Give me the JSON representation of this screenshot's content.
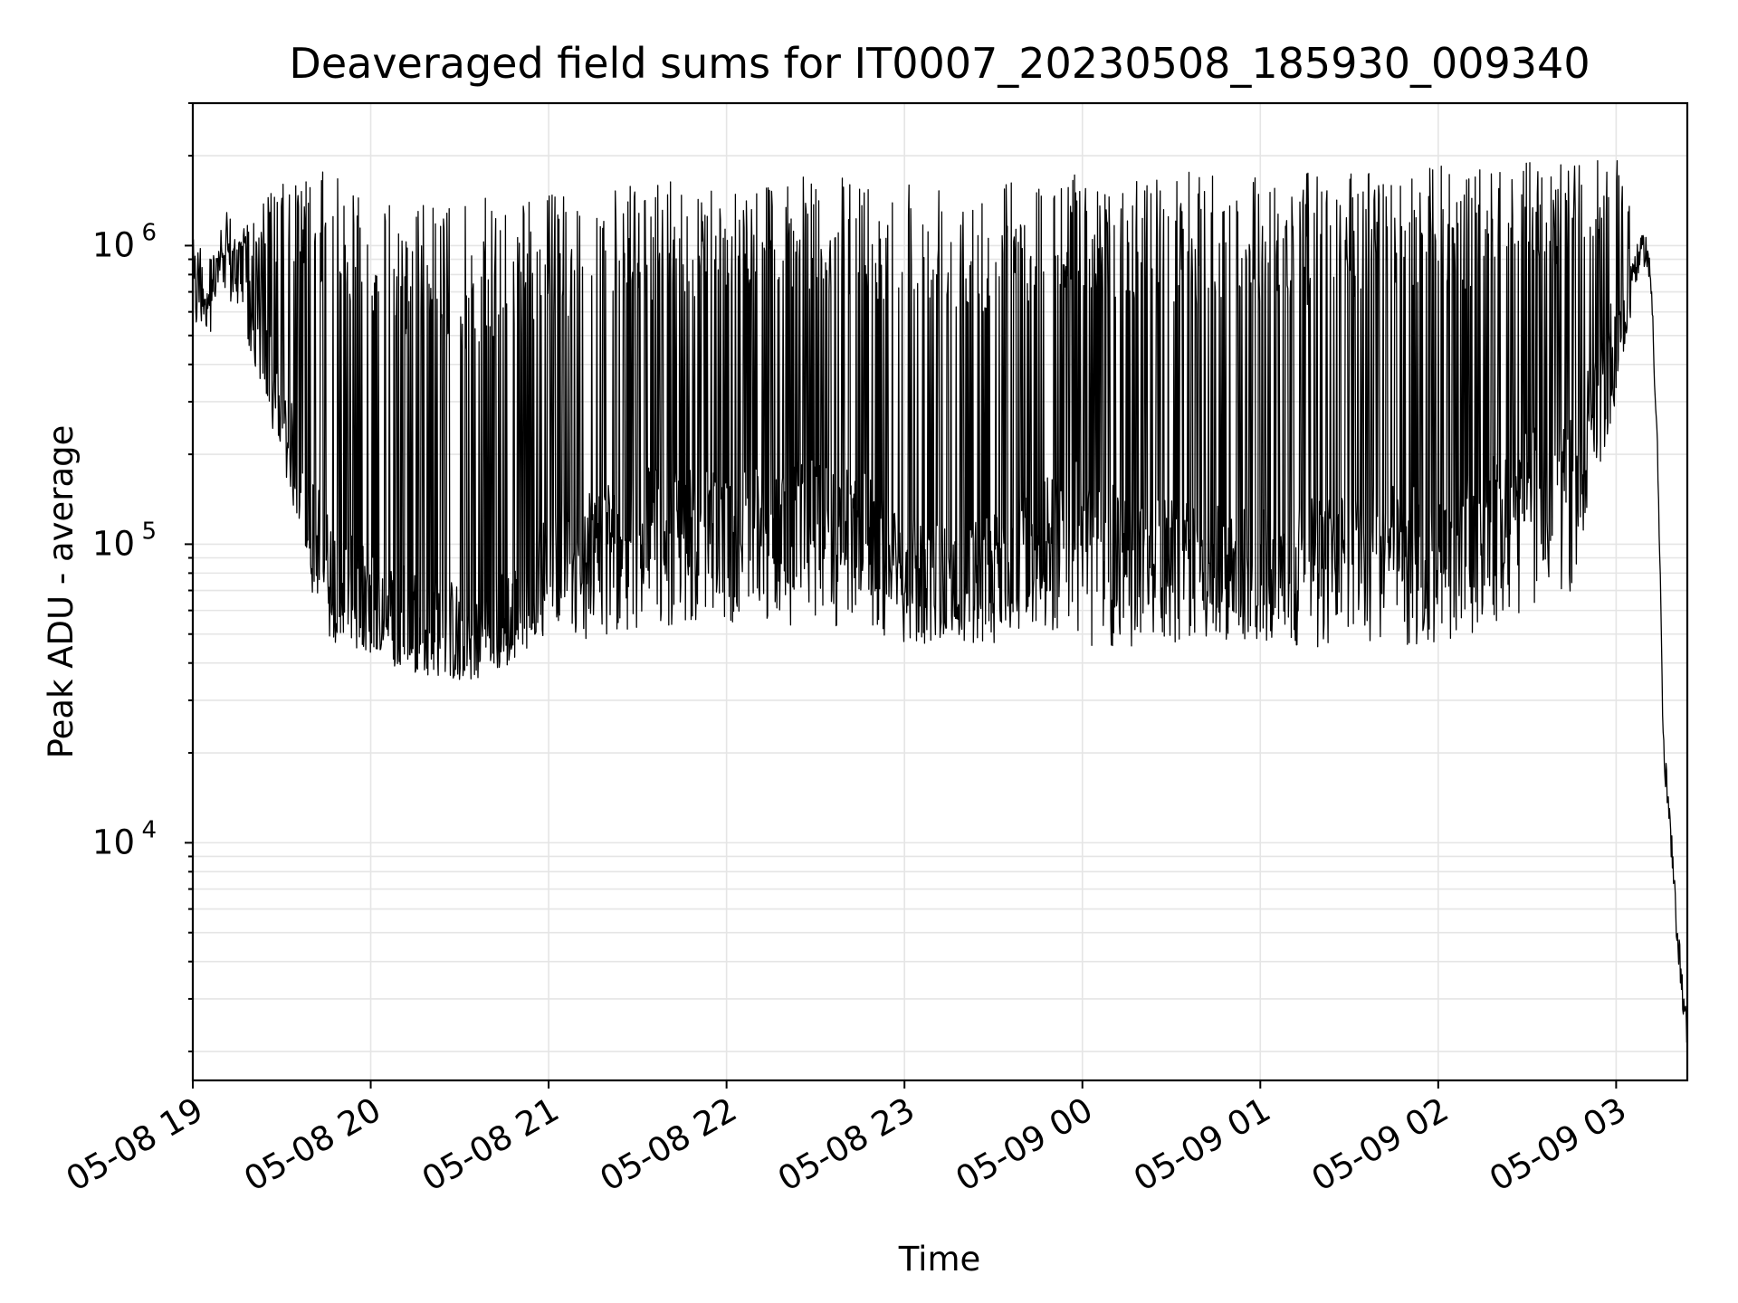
{
  "chart_data": {
    "type": "line",
    "title": "Deaveraged field sums for IT0007_20230508_185930_009340",
    "xlabel": "Time",
    "ylabel": "Peak ADU - average",
    "yscale": "log",
    "ylim": [
      1600,
      3000000
    ],
    "xlim": [
      "2023-05-08 19:00",
      "2023-05-09 03:24"
    ],
    "grid": true,
    "line_color": "#000000",
    "x_ticks": [
      {
        "t": "2023-05-08 19:00",
        "label": "05-08 19"
      },
      {
        "t": "2023-05-08 20:00",
        "label": "05-08 20"
      },
      {
        "t": "2023-05-08 21:00",
        "label": "05-08 21"
      },
      {
        "t": "2023-05-08 22:00",
        "label": "05-08 22"
      },
      {
        "t": "2023-05-08 23:00",
        "label": "05-08 23"
      },
      {
        "t": "2023-05-09 00:00",
        "label": "05-09 00"
      },
      {
        "t": "2023-05-09 01:00",
        "label": "05-09 01"
      },
      {
        "t": "2023-05-09 02:00",
        "label": "05-09 02"
      },
      {
        "t": "2023-05-09 03:00",
        "label": "05-09 03"
      }
    ],
    "y_ticks": [
      {
        "value": 10000,
        "base": "10",
        "exp": "4"
      },
      {
        "value": 100000,
        "base": "10",
        "exp": "5"
      },
      {
        "value": 1000000,
        "base": "10",
        "exp": "6"
      }
    ],
    "series": [
      {
        "x": [
          "2023-05-08 19:00",
          "2023-05-08 19:05",
          "2023-05-08 19:10",
          "2023-05-08 19:15",
          "2023-05-08 19:20",
          "2023-05-08 19:25",
          "2023-05-08 19:30",
          "2023-05-08 19:35",
          "2023-05-08 19:40",
          "2023-05-08 19:45",
          "2023-05-08 19:50",
          "2023-05-08 19:55",
          "2023-05-08 20:00",
          "2023-05-08 20:10",
          "2023-05-08 20:20",
          "2023-05-08 20:30",
          "2023-05-08 20:40",
          "2023-05-08 20:50",
          "2023-05-08 21:00",
          "2023-05-08 21:15",
          "2023-05-08 21:30",
          "2023-05-08 21:45",
          "2023-05-08 22:00",
          "2023-05-08 22:15",
          "2023-05-08 22:30",
          "2023-05-08 22:45",
          "2023-05-08 23:00",
          "2023-05-08 23:15",
          "2023-05-08 23:30",
          "2023-05-08 23:45",
          "2023-05-09 00:00",
          "2023-05-09 00:15",
          "2023-05-09 00:30",
          "2023-05-09 00:45",
          "2023-05-09 01:00",
          "2023-05-09 01:15",
          "2023-05-09 01:30",
          "2023-05-09 01:45",
          "2023-05-09 02:00",
          "2023-05-09 02:15",
          "2023-05-09 02:30",
          "2023-05-09 02:45",
          "2023-05-09 03:00",
          "2023-05-09 03:05",
          "2023-05-09 03:10",
          "2023-05-09 03:12",
          "2023-05-09 03:14",
          "2023-05-09 03:16",
          "2023-05-09 03:18",
          "2023-05-09 03:20",
          "2023-05-09 03:22",
          "2023-05-09 03:24"
        ],
        "base": [
          700000,
          750000,
          850000,
          900000,
          650000,
          400000,
          250000,
          180000,
          120000,
          90000,
          75000,
          70000,
          65000,
          60000,
          55000,
          50000,
          52000,
          60000,
          90000,
          110000,
          120000,
          125000,
          120000,
          125000,
          130000,
          120000,
          90000,
          80000,
          85000,
          110000,
          130000,
          100000,
          95000,
          90000,
          90000,
          95000,
          100000,
          110000,
          100000,
          130000,
          170000,
          180000,
          500000,
          800000,
          1000000,
          700000,
          200000,
          20000,
          12000,
          6000,
          3500,
          2200
        ],
        "peak": [
          800000,
          900000,
          950000,
          1000000,
          1300000,
          1500000,
          1600000,
          1700000,
          1700000,
          1800000,
          2000000,
          1700000,
          1400000,
          1400000,
          1400000,
          1400000,
          1450000,
          1450000,
          1500000,
          1500000,
          1600000,
          1650000,
          1650000,
          1700000,
          1700000,
          1700000,
          1750000,
          1750000,
          1700000,
          1750000,
          1750000,
          1700000,
          1750000,
          1800000,
          1800000,
          1750000,
          1800000,
          1800000,
          1850000,
          1850000,
          1900000,
          1900000,
          2000000,
          1500000,
          1100000,
          900000,
          400000,
          30000,
          14000,
          8000,
          4500,
          2600
        ],
        "trough": [
          550000,
          620000,
          700000,
          650000,
          380000,
          300000,
          200000,
          130000,
          70000,
          50000,
          45000,
          40000,
          42000,
          38000,
          36000,
          34000,
          36000,
          45000,
          50000,
          48000,
          50000,
          55000,
          55000,
          52000,
          55000,
          50000,
          45000,
          45000,
          45000,
          55000,
          45000,
          45000,
          46000,
          48000,
          45000,
          44000,
          45000,
          45000,
          46000,
          48000,
          60000,
          70000,
          300000,
          600000,
          900000,
          600000,
          150000,
          15000,
          9000,
          4000,
          3000,
          1800
        ]
      }
    ]
  }
}
